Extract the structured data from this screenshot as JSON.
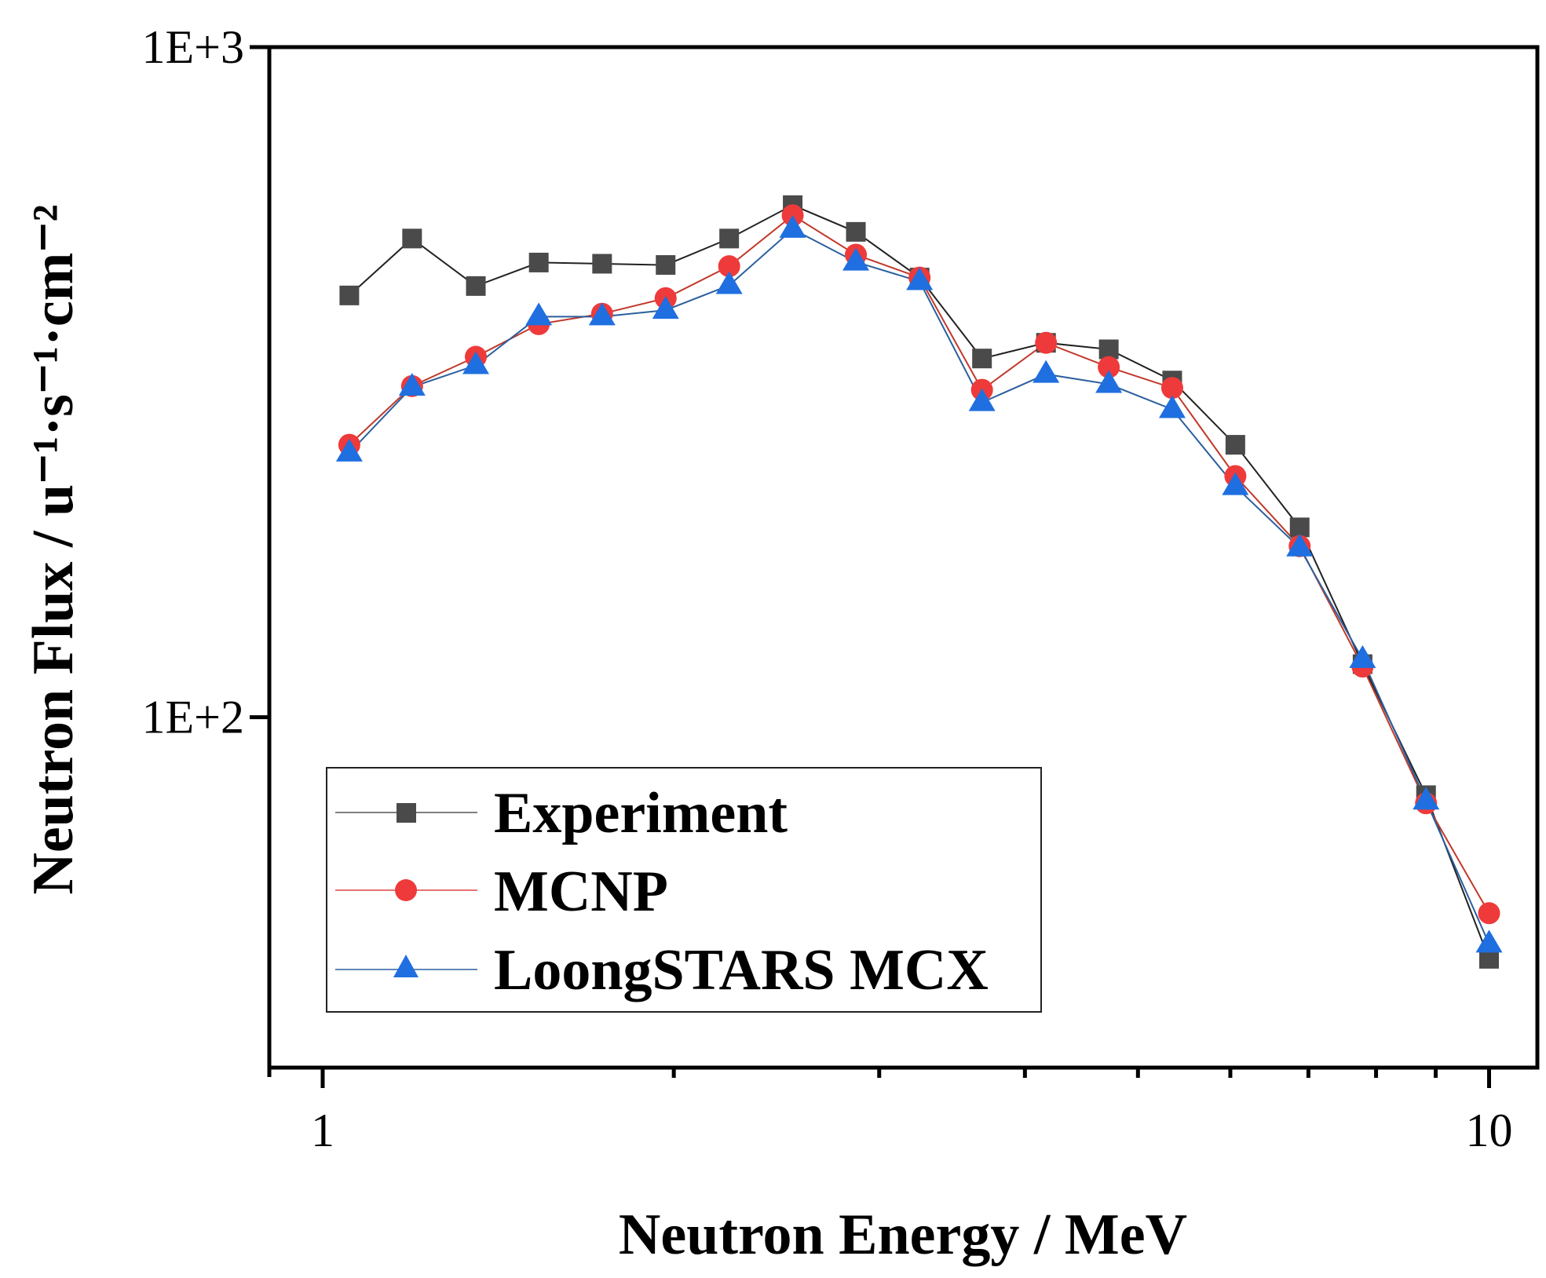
{
  "chart_data": {
    "type": "line",
    "title": "",
    "xlabel": "Neutron Energy / MeV",
    "ylabel": "Neutron Flux / u⁻¹·s⁻¹·cm⁻²",
    "x_scale": "log",
    "y_scale": "log",
    "xlim": [
      0.9,
      11.0
    ],
    "ylim": [
      30,
      1000
    ],
    "x_ticks": [
      {
        "value": 1,
        "label": "1"
      },
      {
        "value": 10,
        "label": "10"
      }
    ],
    "x_minor_ticks": [
      2,
      3,
      4,
      5,
      6,
      7,
      8,
      9
    ],
    "y_ticks": [
      {
        "value": 100,
        "label": "1E+2"
      },
      {
        "value": 1000,
        "label": "1E+3"
      }
    ],
    "grid": false,
    "legend_position": "bottom-left",
    "x": [
      1.054,
      1.193,
      1.353,
      1.532,
      1.736,
      1.968,
      2.231,
      2.529,
      2.865,
      3.249,
      3.675,
      4.17,
      4.72,
      5.35,
      6.06,
      6.88,
      7.79,
      8.83,
      10.0
    ],
    "series": [
      {
        "name": "Experiment",
        "marker": "square",
        "color": "#4a4a4a",
        "line_color": "#222222",
        "values": [
          426,
          518,
          440,
          477,
          475,
          473,
          518,
          581,
          530,
          453,
          343,
          362,
          354,
          318,
          255,
          192,
          120,
          76.5,
          43.6
        ]
      },
      {
        "name": "MCNP",
        "marker": "circle",
        "color": "#ee3a3a",
        "line_color": "#c0392b",
        "values": [
          255,
          312,
          345,
          386,
          400,
          422,
          471,
          561,
          490,
          453,
          308,
          362,
          333,
          310,
          229,
          180,
          119,
          74.4,
          51.0
        ]
      },
      {
        "name": "LoongSTARS MCX",
        "marker": "triangle",
        "color": "#1f6fe0",
        "line_color": "#2b5f9e",
        "values": [
          248,
          311,
          335,
          396,
          396,
          405,
          441,
          535,
          478,
          447,
          295,
          325,
          314,
          288,
          221,
          179,
          122,
          75.0,
          45.9
        ]
      }
    ]
  }
}
